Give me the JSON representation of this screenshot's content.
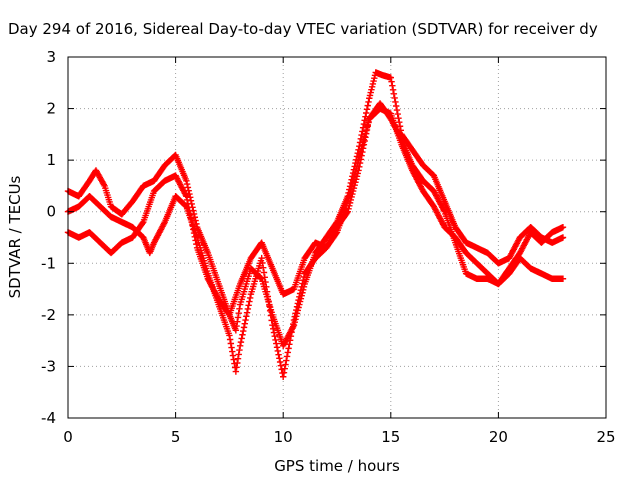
{
  "chart_data": {
    "type": "scatter",
    "title": "Day 294 of 2016, Sidereal Day-to-day VTEC variation (SDTVAR) for receiver dy",
    "xlabel": "GPS time / hours",
    "ylabel": "SDTVAR / TECUs",
    "xlim": [
      0,
      25
    ],
    "ylim": [
      -4,
      3
    ],
    "xticks": [
      "0",
      "5",
      "10",
      "15",
      "20",
      "25"
    ],
    "yticks": [
      "-4",
      "-3",
      "-2",
      "-1",
      "0",
      "1",
      "2",
      "3"
    ],
    "grid": true,
    "marker": "plus",
    "color": "#ff0000",
    "series": [
      {
        "x": [
          0,
          0.5,
          1.0,
          1.3,
          1.7,
          2.0,
          2.5,
          3.0,
          3.5,
          4.0,
          4.5,
          5.0,
          5.5,
          6.0,
          6.5,
          7.0,
          7.5,
          7.8,
          8.0,
          8.5,
          9.0,
          9.5,
          10.0,
          10.5,
          11.0,
          11.5,
          12.0,
          12.5,
          13.0,
          13.5,
          14.0,
          14.3,
          14.6,
          15.0,
          15.5,
          16.0,
          16.5,
          17.0,
          17.5,
          18.0,
          18.5,
          19.0,
          19.5,
          20.0,
          20.5,
          21.0,
          21.5,
          22.0,
          22.5,
          23.0
        ],
        "y": [
          0.4,
          0.3,
          0.6,
          0.8,
          0.5,
          0.1,
          -0.05,
          0.2,
          0.5,
          0.6,
          0.9,
          1.1,
          0.6,
          -0.3,
          -0.8,
          -1.4,
          -2.0,
          -2.3,
          -1.8,
          -1.1,
          -1.3,
          -2.0,
          -2.6,
          -2.2,
          -1.4,
          -0.8,
          -0.5,
          -0.2,
          0.3,
          1.2,
          2.2,
          2.7,
          2.65,
          2.6,
          1.5,
          1.2,
          0.9,
          0.7,
          0.2,
          -0.3,
          -0.6,
          -0.7,
          -0.8,
          -1.0,
          -0.9,
          -0.5,
          -0.3,
          -0.5,
          -0.6,
          -0.5
        ]
      },
      {
        "x": [
          0,
          0.5,
          1.0,
          1.5,
          2.0,
          2.5,
          3.0,
          3.5,
          3.8,
          4.0,
          4.5,
          5.0,
          5.5,
          6.0,
          6.5,
          7.0,
          7.5,
          7.8,
          8.0,
          8.5,
          9.0,
          9.5,
          10.0,
          10.5,
          11.0,
          11.5,
          12.0,
          12.5,
          13.0,
          13.5,
          14.0,
          14.5,
          15.0,
          15.5,
          16.0,
          16.5,
          17.0,
          17.5,
          18.0,
          18.5,
          19.0,
          19.5,
          20.0,
          20.5,
          21.0,
          21.5,
          22.0,
          22.5,
          23.0
        ],
        "y": [
          0.0,
          0.1,
          0.3,
          0.1,
          -0.1,
          -0.2,
          -0.3,
          -0.5,
          -0.8,
          -0.6,
          -0.2,
          0.3,
          0.1,
          -0.5,
          -1.2,
          -1.8,
          -2.4,
          -3.1,
          -2.6,
          -1.6,
          -0.9,
          -2.2,
          -3.2,
          -2.1,
          -1.2,
          -0.9,
          -0.7,
          -0.4,
          0.2,
          1.0,
          1.8,
          2.0,
          1.9,
          1.3,
          0.8,
          0.4,
          0.1,
          -0.3,
          -0.5,
          -0.8,
          -1.0,
          -1.2,
          -1.4,
          -1.1,
          -0.8,
          -0.4,
          -0.6,
          -0.4,
          -0.3
        ]
      },
      {
        "x": [
          0,
          0.5,
          1.0,
          1.5,
          2.0,
          2.5,
          3.0,
          3.5,
          4.0,
          4.5,
          5.0,
          5.5,
          6.0,
          6.5,
          7.0,
          7.5,
          8.0,
          8.5,
          9.0,
          9.5,
          10.0,
          10.5,
          11.0,
          11.5,
          12.0,
          12.5,
          13.0,
          13.5,
          14.0,
          14.5,
          15.0,
          15.5,
          16.0,
          16.5,
          17.0,
          17.5,
          18.0,
          18.5,
          19.0,
          19.5,
          20.0,
          20.5,
          21.0,
          21.5,
          22.0,
          22.5,
          23.0
        ],
        "y": [
          -0.4,
          -0.5,
          -0.4,
          -0.6,
          -0.8,
          -0.6,
          -0.5,
          -0.2,
          0.4,
          0.6,
          0.7,
          0.3,
          -0.7,
          -1.3,
          -1.7,
          -2.0,
          -1.4,
          -0.9,
          -0.6,
          -1.1,
          -1.6,
          -1.5,
          -0.9,
          -0.6,
          -0.7,
          -0.3,
          0.0,
          0.8,
          1.8,
          2.1,
          1.8,
          1.4,
          0.9,
          0.6,
          0.4,
          0.0,
          -0.6,
          -1.2,
          -1.3,
          -1.3,
          -1.4,
          -1.2,
          -0.9,
          -1.1,
          -1.2,
          -1.3,
          -1.3
        ]
      }
    ]
  }
}
